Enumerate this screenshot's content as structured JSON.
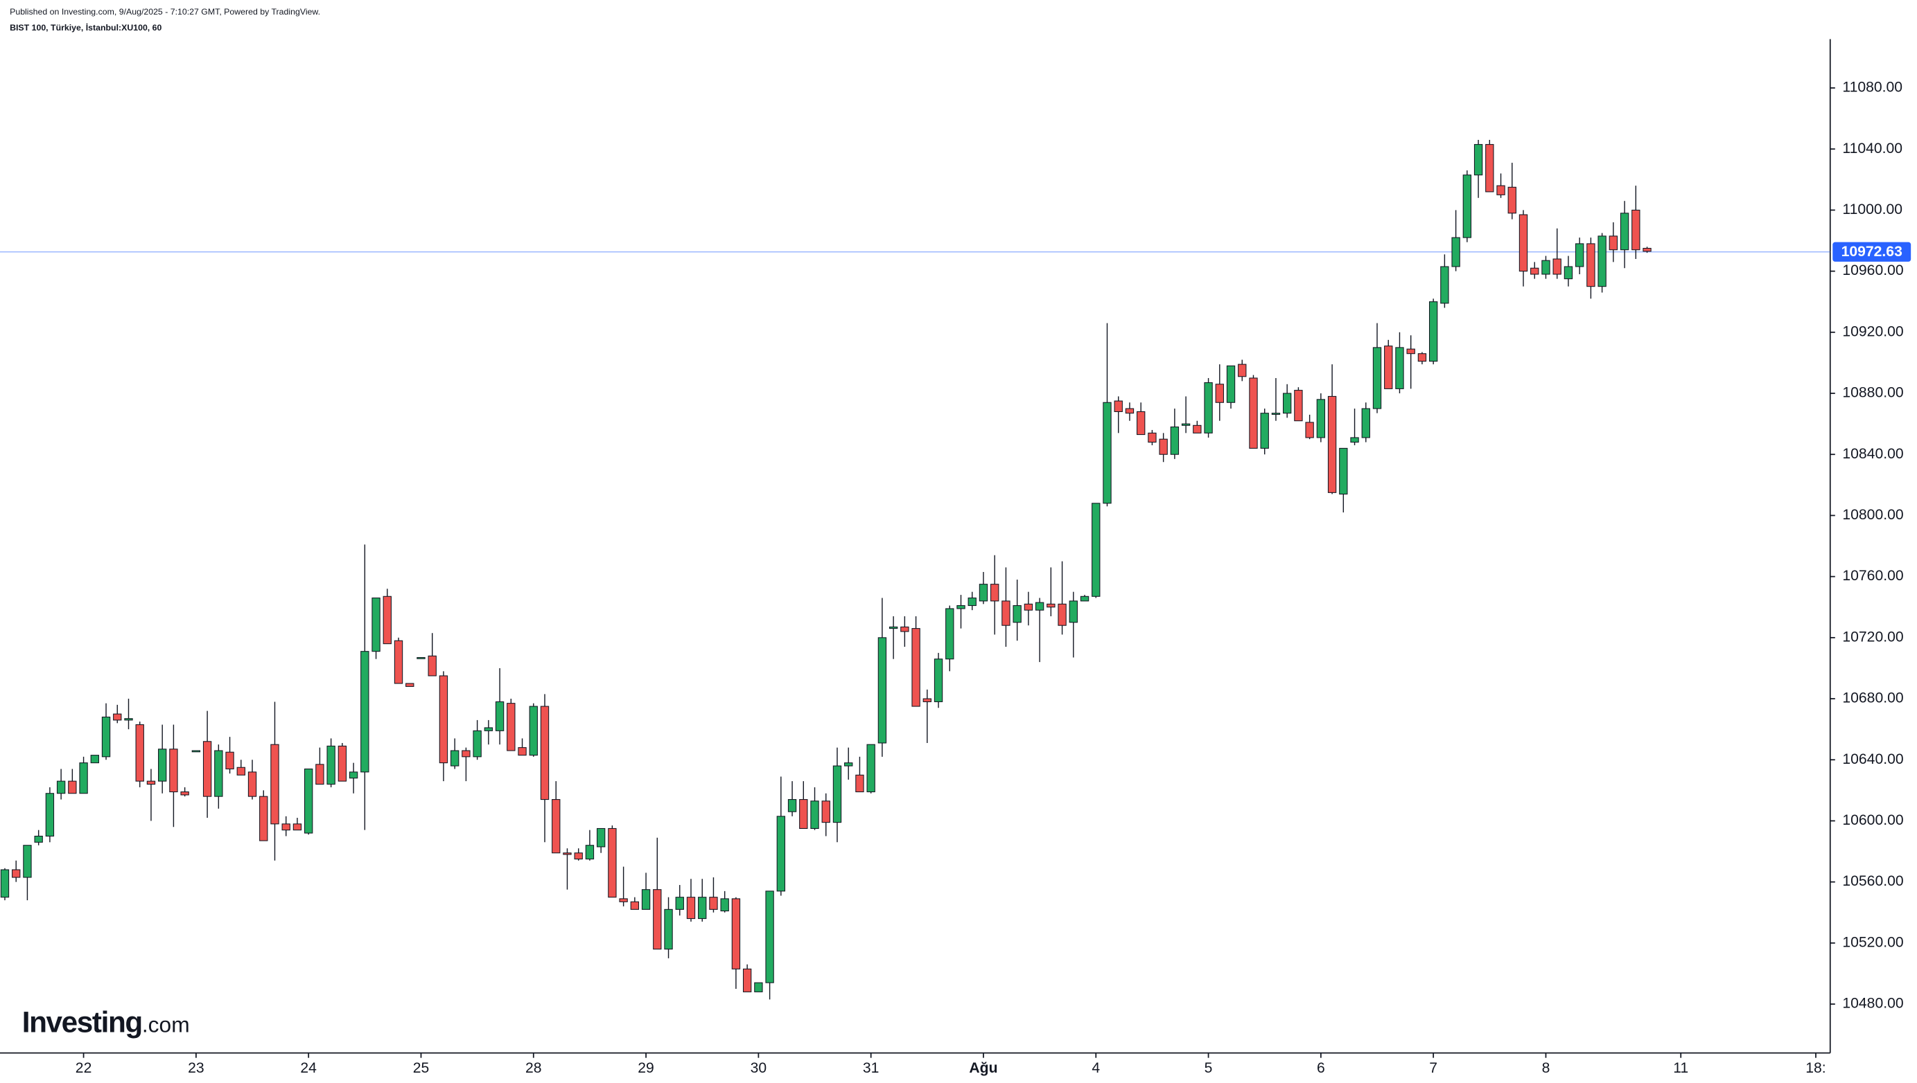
{
  "header": {
    "published": "Published on Investing.com, 9/Aug/2025 - 7:10:27 GMT, Powered by TradingView.",
    "symbol": "BIST 100, Türkiye, İstanbul:XU100, 60"
  },
  "logo": {
    "name": "Investing",
    "suffix": ".com"
  },
  "chart_data": {
    "type": "candlestick",
    "up_color": "#22ab60",
    "down_color": "#ef5350",
    "last_price": 10972.63,
    "last_price_color": "#2962ff",
    "xlim": [
      -0.43,
      162.28
    ],
    "ylim": [
      10448,
      11112
    ],
    "xticks": [
      {
        "value": 7,
        "label": "22"
      },
      {
        "value": 17,
        "label": "23"
      },
      {
        "value": 27,
        "label": "24"
      },
      {
        "value": 37,
        "label": "25"
      },
      {
        "value": 47,
        "label": "28"
      },
      {
        "value": 57,
        "label": "29"
      },
      {
        "value": 67,
        "label": "30"
      },
      {
        "value": 77,
        "label": "31"
      },
      {
        "value": 87,
        "label": "Ağu"
      },
      {
        "value": 97,
        "label": "4"
      },
      {
        "value": 107,
        "label": "5"
      },
      {
        "value": 117,
        "label": "6"
      },
      {
        "value": 127,
        "label": "7"
      },
      {
        "value": 137,
        "label": "8"
      },
      {
        "value": 149,
        "label": "11"
      },
      {
        "value": 161,
        "label": "18:"
      }
    ],
    "yticks": [
      {
        "value": 10480,
        "label": "10480.00"
      },
      {
        "value": 10520,
        "label": "10520.00"
      },
      {
        "value": 10560,
        "label": "10560.00"
      },
      {
        "value": 10600,
        "label": "10600.00"
      },
      {
        "value": 10640,
        "label": "10640.00"
      },
      {
        "value": 10680,
        "label": "10680.00"
      },
      {
        "value": 10720,
        "label": "10720.00"
      },
      {
        "value": 10760,
        "label": "10760.00"
      },
      {
        "value": 10800,
        "label": "10800.00"
      },
      {
        "value": 10840,
        "label": "10840.00"
      },
      {
        "value": 10880,
        "label": "10880.00"
      },
      {
        "value": 10920,
        "label": "10920.00"
      },
      {
        "value": 10960,
        "label": "10960.00"
      },
      {
        "value": 11000,
        "label": "11000.00"
      },
      {
        "value": 11040,
        "label": "11040.00"
      },
      {
        "value": 11080,
        "label": "11080.00"
      }
    ],
    "open": [
      10550,
      10568,
      10563,
      10586,
      10590,
      10618,
      10626,
      10618,
      10638,
      10642,
      10670,
      10666,
      10663,
      10626,
      10626,
      10647,
      10619,
      10646,
      10652,
      10616,
      10645,
      10635,
      10632,
      10616,
      10650,
      10598,
      10598,
      10592,
      10637,
      10624,
      10649,
      10628,
      10632,
      10711,
      10747,
      10718,
      10690,
      10707,
      10708,
      10695,
      10636,
      10646,
      10642,
      10659,
      10659,
      10677,
      10648,
      10643,
      10675,
      10614,
      10579,
      10579,
      10575,
      10583,
      10595,
      10549,
      10547,
      10542,
      10555,
      10516,
      10542,
      10550,
      10536,
      10550,
      10541,
      10549,
      10503,
      10488,
      10494,
      10554,
      10606,
      10614,
      10595,
      10613,
      10599,
      10636,
      10630,
      10619,
      10651,
      10726,
      10727,
      10726,
      10680,
      10678,
      10706,
      10739,
      10741,
      10744,
      10755,
      10744,
      10730,
      10742,
      10738,
      10742,
      10742,
      10730,
      10744,
      10747,
      10808,
      10875,
      10870,
      10868,
      10854,
      10850,
      10840,
      10859,
      10859,
      10854,
      10886,
      10874,
      10899,
      10890,
      10844,
      10867,
      10867,
      10882,
      10861,
      10851,
      10878,
      10814,
      10848,
      10851,
      10870,
      10911,
      10883,
      10909,
      10906,
      10901,
      10939,
      10963,
      10982,
      11023,
      11043,
      11016,
      11015,
      10997,
      10962,
      10958,
      10968,
      10955,
      10963,
      10978,
      10950,
      10983,
      10974,
      11000,
      10975
    ],
    "high": [
      10569,
      10574,
      10584,
      10594,
      10622,
      10634,
      10634,
      10642,
      10643,
      10677,
      10676,
      10680,
      10665,
      10634,
      10663,
      10663,
      10622,
      10646,
      10672,
      10650,
      10655,
      10640,
      10640,
      10620,
      10678,
      10603,
      10602,
      10634,
      10648,
      10654,
      10651,
      10638,
      10781,
      10746,
      10752,
      10720,
      10690,
      10707,
      10723,
      10698,
      10654,
      10648,
      10666,
      10666,
      10700,
      10680,
      10654,
      10677,
      10683,
      10626,
      10582,
      10582,
      10594,
      10595,
      10597,
      10570,
      10550,
      10566,
      10589,
      10550,
      10558,
      10562,
      10562,
      10563,
      10554,
      10550,
      10506,
      10494,
      10554,
      10629,
      10626,
      10626,
      10622,
      10618,
      10648,
      10648,
      10642,
      10650,
      10746,
      10734,
      10734,
      10734,
      10686,
      10710,
      10741,
      10748,
      10750,
      10763,
      10774,
      10766,
      10758,
      10750,
      10746,
      10766,
      10770,
      10750,
      10748,
      10808,
      10926,
      10878,
      10874,
      10874,
      10856,
      10854,
      10870,
      10878,
      10862,
      10890,
      10899,
      10898,
      10902,
      10892,
      10870,
      10890,
      10886,
      10884,
      10866,
      10880,
      10899,
      10844,
      10870,
      10874,
      10926,
      10915,
      10920,
      10918,
      10907,
      10942,
      10971,
      11000,
      11026,
      11046,
      11046,
      11024,
      11031,
      11000,
      10966,
      10970,
      10988,
      10970,
      10982,
      10982,
      10985,
      10992,
      11006,
      11016,
      10976
    ],
    "low": [
      10548,
      10560,
      10548,
      10584,
      10586,
      10614,
      10618,
      10618,
      10638,
      10640,
      10664,
      10660,
      10622,
      10600,
      10618,
      10596,
      10616,
      10646,
      10602,
      10608,
      10631,
      10630,
      10614,
      10587,
      10574,
      10590,
      10594,
      10591,
      10624,
      10622,
      10626,
      10618,
      10594,
      10706,
      10716,
      10690,
      10688,
      10707,
      10695,
      10626,
      10634,
      10626,
      10640,
      10650,
      10650,
      10646,
      10643,
      10642,
      10586,
      10579,
      10555,
      10574,
      10574,
      10579,
      10550,
      10544,
      10542,
      10542,
      10516,
      10510,
      10538,
      10534,
      10534,
      10540,
      10540,
      10490,
      10488,
      10488,
      10483,
      10551,
      10603,
      10595,
      10594,
      10590,
      10586,
      10627,
      10619,
      10618,
      10642,
      10706,
      10714,
      10675,
      10651,
      10674,
      10698,
      10726,
      10738,
      10742,
      10722,
      10714,
      10718,
      10728,
      10704,
      10734,
      10722,
      10707,
      10744,
      10746,
      10806,
      10854,
      10862,
      10853,
      10846,
      10835,
      10837,
      10854,
      10854,
      10851,
      10862,
      10870,
      10888,
      10844,
      10840,
      10862,
      10864,
      10862,
      10850,
      10848,
      10814,
      10802,
      10846,
      10848,
      10867,
      10883,
      10880,
      10883,
      10899,
      10899,
      10936,
      10960,
      10979,
      11008,
      11012,
      11008,
      10994,
      10950,
      10955,
      10955,
      10955,
      10950,
      10958,
      10942,
      10946,
      10966,
      10962,
      10968,
      10972
    ],
    "close": [
      10568,
      10563,
      10584,
      10590,
      10618,
      10626,
      10618,
      10638,
      10643,
      10668,
      10666,
      10667,
      10626,
      10624,
      10647,
      10619,
      10617,
      10646,
      10616,
      10646,
      10634,
      10630,
      10616,
      10587,
      10598,
      10594,
      10594,
      10634,
      10624,
      10649,
      10626,
      10632,
      10711,
      10746,
      10716,
      10690,
      10688,
      10707,
      10695,
      10638,
      10646,
      10642,
      10659,
      10661,
      10678,
      10646,
      10643,
      10675,
      10614,
      10579,
      10578,
      10575,
      10584,
      10595,
      10550,
      10547,
      10542,
      10555,
      10516,
      10542,
      10550,
      10536,
      10550,
      10542,
      10549,
      10503,
      10488,
      10494,
      10554,
      10603,
      10614,
      10595,
      10613,
      10599,
      10636,
      10638,
      10619,
      10650,
      10720,
      10727,
      10724,
      10675,
      10678,
      10706,
      10739,
      10741,
      10746,
      10755,
      10744,
      10728,
      10741,
      10738,
      10743,
      10740,
      10728,
      10744,
      10747,
      10808,
      10874,
      10868,
      10867,
      10853,
      10848,
      10840,
      10858,
      10860,
      10854,
      10887,
      10874,
      10898,
      10891,
      10844,
      10867,
      10867,
      10880,
      10862,
      10851,
      10876,
      10815,
      10844,
      10851,
      10870,
      10910,
      10883,
      10910,
      10906,
      10901,
      10940,
      10963,
      10982,
      11023,
      11043,
      11012,
      11010,
      10998,
      10960,
      10958,
      10967,
      10958,
      10963,
      10978,
      10950,
      10983,
      10974,
      10998,
      10974,
      10973
    ]
  }
}
